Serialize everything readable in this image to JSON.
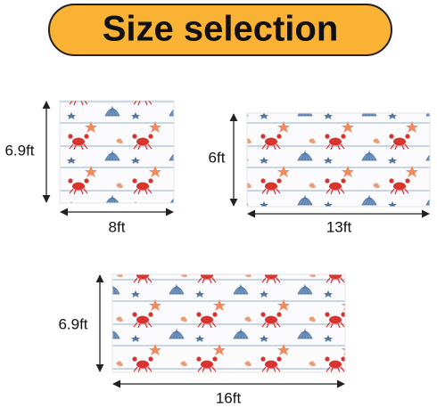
{
  "header": {
    "title": "Size selection"
  },
  "panels": [
    {
      "height": "6.9ft",
      "width": "8ft"
    },
    {
      "height": "6ft",
      "width": "13ft"
    },
    {
      "height": "6.9ft",
      "width": "16ft"
    }
  ]
}
